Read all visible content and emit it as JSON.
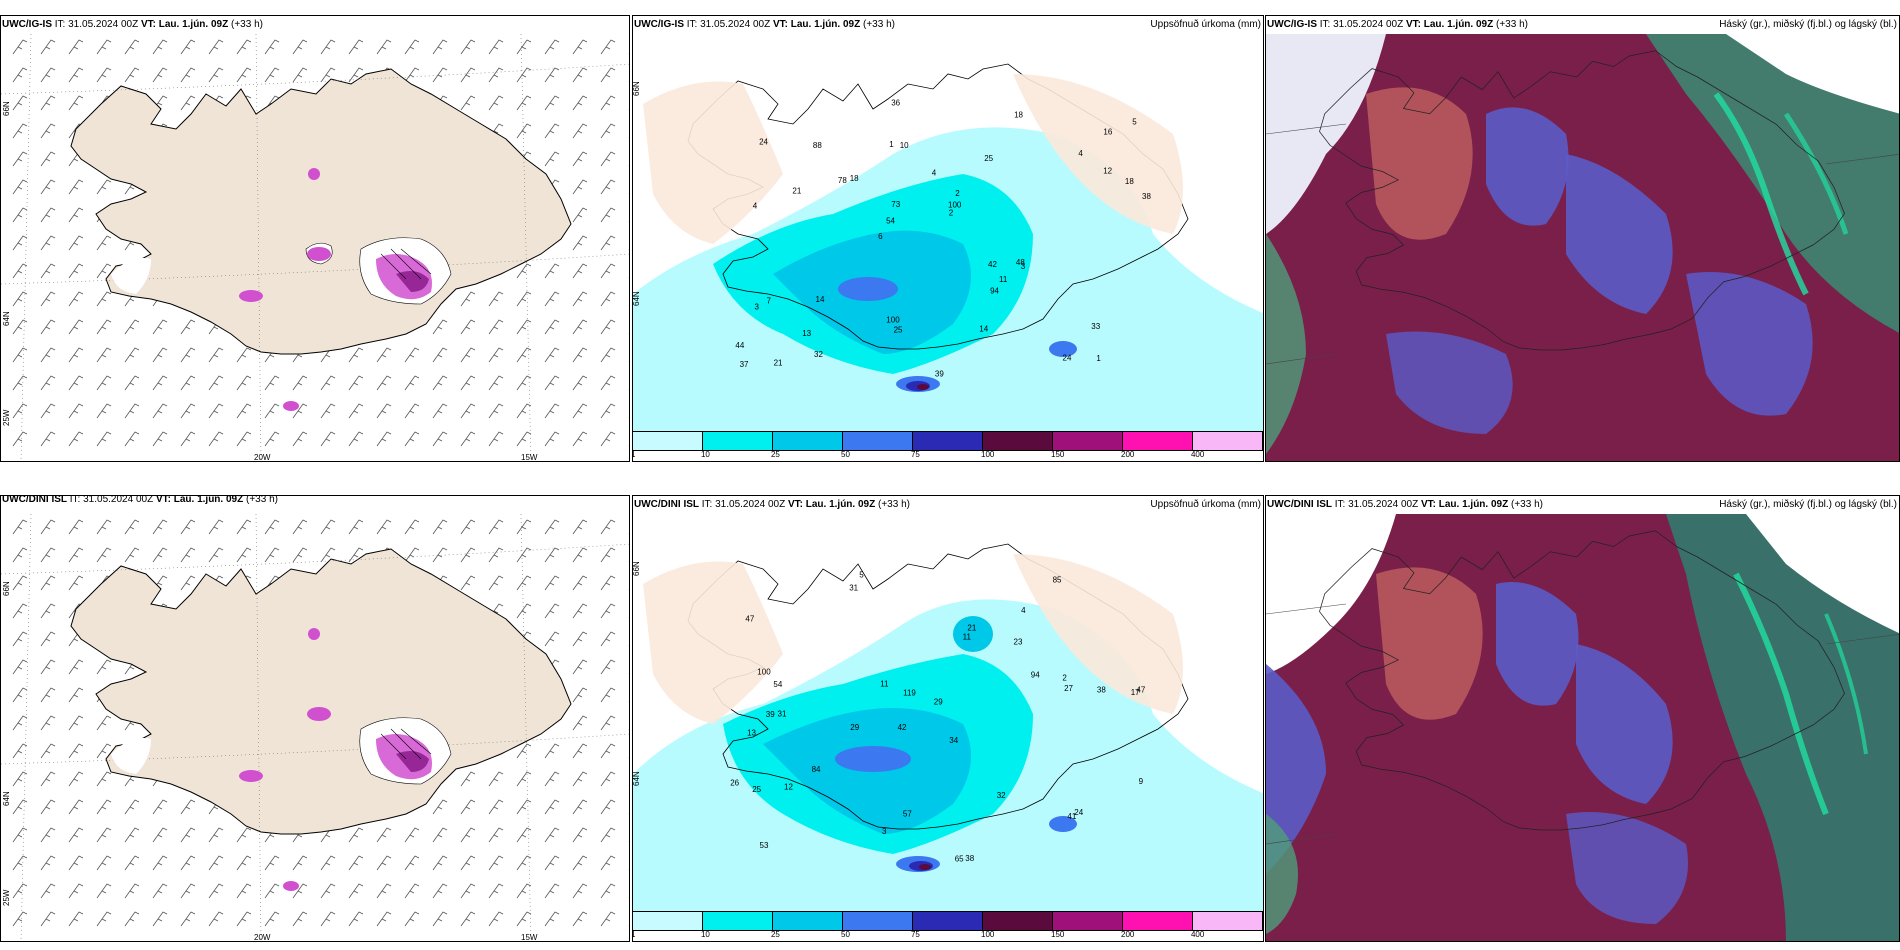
{
  "panels": [
    {
      "id": "r0c0",
      "prefix": "UWC/IG-IS",
      "it_label": "IT:",
      "it": "31.05.2024 00Z",
      "vt_label": "VT:",
      "vt": "Lau. 1.jún. 09Z",
      "lead": "(+33 h)",
      "right": ""
    },
    {
      "id": "r0c1",
      "prefix": "UWC/IG-IS",
      "it_label": "IT:",
      "it": "31.05.2024 00Z",
      "vt_label": "VT:",
      "vt": "Lau. 1.jún. 09Z",
      "lead": "(+33 h)",
      "right": "Uppsöfnuð úrkoma (mm)"
    },
    {
      "id": "r0c2",
      "prefix": "UWC/IG-IS",
      "it_label": "IT:",
      "it": "31.05.2024 00Z",
      "vt_label": "VT:",
      "vt": "Lau. 1.jún. 09Z",
      "lead": "(+33 h)",
      "right": "Háský (gr.), miðský (fj.bl.) og lágský (bl.)"
    },
    {
      "id": "r1c0",
      "prefix": "UWC/DINI ISL",
      "it_label": "IT:",
      "it": "31.05.2024 00Z",
      "vt_label": "VT:",
      "vt": "Lau. 1.jún. 09Z",
      "lead": "(+33 h)",
      "right": ""
    },
    {
      "id": "r1c1",
      "prefix": "UWC/DINI ISL",
      "it_label": "IT:",
      "it": "31.05.2024 00Z",
      "vt_label": "VT:",
      "vt": "Lau. 1.jún. 09Z",
      "lead": "(+33 h)",
      "right": "Uppsöfnuð úrkoma (mm)"
    },
    {
      "id": "r1c2",
      "prefix": "UWC/DINI ISL",
      "it_label": "IT:",
      "it": "31.05.2024 00Z",
      "vt_label": "VT:",
      "vt": "Lau. 1.jún. 09Z",
      "lead": "(+33 h)",
      "right": "Háský (gr.), miðský (fj.bl.) og lágský (bl.)"
    }
  ],
  "axes": {
    "lon_20w": "20W",
    "lon_15w": "15W",
    "lon_25w": "25W",
    "lat_66n": "66N",
    "lat_64n": "64N"
  },
  "legend": {
    "colors": [
      "#c8fbff",
      "#00f0f0",
      "#00c8e8",
      "#3c78f0",
      "#2a2ab4",
      "#5a0a3c",
      "#a0107a",
      "#ff10b0",
      "#f8b8f8"
    ],
    "ticks": [
      "1",
      "10",
      "25",
      "50",
      "75",
      "100",
      "150",
      "200",
      "400"
    ]
  },
  "precip_labels_top": [
    {
      "v": "1"
    },
    {
      "v": "4"
    },
    {
      "v": "16"
    },
    {
      "v": "6"
    },
    {
      "v": "25"
    },
    {
      "v": "21"
    },
    {
      "v": "1"
    },
    {
      "v": "4"
    },
    {
      "v": "7"
    },
    {
      "v": "18"
    },
    {
      "v": "44"
    },
    {
      "v": "13"
    },
    {
      "v": "10"
    },
    {
      "v": "2"
    },
    {
      "v": "3"
    },
    {
      "v": "24"
    },
    {
      "v": "36"
    },
    {
      "v": "38"
    },
    {
      "v": "42"
    },
    {
      "v": "12"
    },
    {
      "v": "54"
    },
    {
      "v": "100"
    },
    {
      "v": "73"
    },
    {
      "v": "88"
    },
    {
      "v": "18"
    },
    {
      "v": "14"
    },
    {
      "v": "24"
    },
    {
      "v": "33"
    },
    {
      "v": "48"
    },
    {
      "v": "39"
    },
    {
      "v": "78"
    },
    {
      "v": "21"
    },
    {
      "v": "94"
    },
    {
      "v": "32"
    },
    {
      "v": "18"
    },
    {
      "v": "100"
    },
    {
      "v": "37"
    },
    {
      "v": "25"
    },
    {
      "v": "2"
    },
    {
      "v": "3"
    },
    {
      "v": "4"
    },
    {
      "v": "5"
    },
    {
      "v": "11"
    },
    {
      "v": "14"
    }
  ],
  "precip_labels_bottom": [
    {
      "v": "5"
    },
    {
      "v": "4"
    },
    {
      "v": "17"
    },
    {
      "v": "42"
    },
    {
      "v": "34"
    },
    {
      "v": "31"
    },
    {
      "v": "47"
    },
    {
      "v": "23"
    },
    {
      "v": "13"
    },
    {
      "v": "11"
    },
    {
      "v": "29"
    },
    {
      "v": "53"
    },
    {
      "v": "31"
    },
    {
      "v": "29"
    },
    {
      "v": "65"
    },
    {
      "v": "38"
    },
    {
      "v": "57"
    },
    {
      "v": "85"
    },
    {
      "v": "94"
    },
    {
      "v": "84"
    },
    {
      "v": "54"
    },
    {
      "v": "39"
    },
    {
      "v": "47"
    },
    {
      "v": "38"
    },
    {
      "v": "26"
    },
    {
      "v": "100"
    },
    {
      "v": "119"
    },
    {
      "v": "27"
    },
    {
      "v": "24"
    },
    {
      "v": "25"
    },
    {
      "v": "41"
    },
    {
      "v": "21"
    },
    {
      "v": "12"
    },
    {
      "v": "11"
    },
    {
      "v": "32"
    },
    {
      "v": "9"
    },
    {
      "v": "2"
    },
    {
      "v": "3"
    }
  ]
}
